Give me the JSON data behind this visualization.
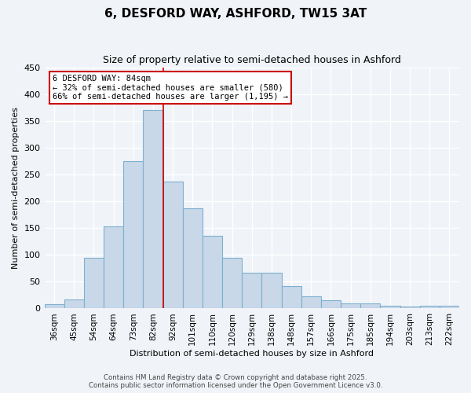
{
  "title": "6, DESFORD WAY, ASHFORD, TW15 3AT",
  "subtitle": "Size of property relative to semi-detached houses in Ashford",
  "xlabel": "Distribution of semi-detached houses by size in Ashford",
  "ylabel": "Number of semi-detached properties",
  "bar_labels": [
    "36sqm",
    "45sqm",
    "54sqm",
    "64sqm",
    "73sqm",
    "82sqm",
    "92sqm",
    "101sqm",
    "110sqm",
    "120sqm",
    "129sqm",
    "138sqm",
    "148sqm",
    "157sqm",
    "166sqm",
    "175sqm",
    "185sqm",
    "194sqm",
    "203sqm",
    "213sqm",
    "222sqm"
  ],
  "bar_values": [
    8,
    17,
    94,
    153,
    275,
    370,
    237,
    187,
    135,
    95,
    67,
    66,
    42,
    23,
    16,
    9,
    9,
    5,
    4,
    5,
    5
  ],
  "bar_color": "#c8d8e8",
  "bar_edge_color": "#7fafd0",
  "background_color": "#f0f4f8",
  "grid_color": "#ffffff",
  "ylim": [
    0,
    450
  ],
  "yticks": [
    0,
    50,
    100,
    150,
    200,
    250,
    300,
    350,
    400,
    450
  ],
  "property_line_x": 5.5,
  "property_size": "84sqm",
  "annotation_text": "6 DESFORD WAY: 84sqm\n← 32% of semi-detached houses are smaller (580)\n66% of semi-detached houses are larger (1,195) →",
  "annotation_box_color": "#ffffff",
  "annotation_box_edge": "#cc0000",
  "line_color": "#cc0000",
  "footer_line1": "Contains HM Land Registry data © Crown copyright and database right 2025.",
  "footer_line2": "Contains public sector information licensed under the Open Government Licence v3.0."
}
